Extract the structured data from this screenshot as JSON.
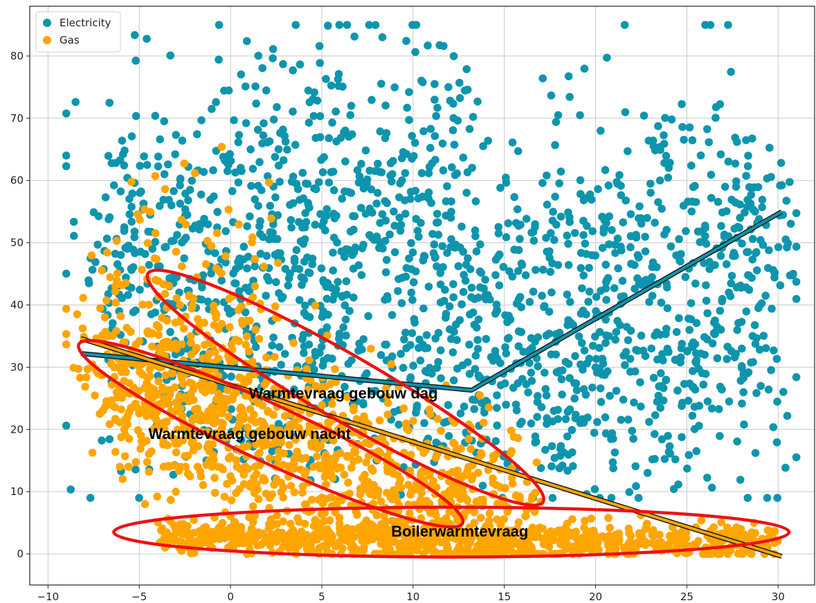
{
  "chart_data": {
    "type": "scatter",
    "title": "",
    "xlabel": "",
    "ylabel": "",
    "xlim": [
      -11,
      32
    ],
    "ylim": [
      -5,
      88
    ],
    "xticks": [
      -10,
      -5,
      0,
      5,
      10,
      15,
      20,
      25,
      30
    ],
    "yticks": [
      0,
      10,
      20,
      30,
      40,
      50,
      60,
      70,
      80
    ],
    "grid": true,
    "legend": {
      "position": "top-left",
      "entries": [
        "Electricity",
        "Gas"
      ]
    },
    "series": [
      {
        "name": "Electricity",
        "color": "#0e95ad",
        "distribution": {
          "x_range": [
            -9,
            31
          ],
          "y_range": [
            9,
            85
          ],
          "mode_x": [
            0,
            18
          ],
          "mode_y": [
            30,
            75
          ]
        }
      },
      {
        "name": "Gas",
        "color": "#ffa500",
        "distribution": {
          "x_range": [
            -9,
            31
          ],
          "y_range": [
            0,
            68
          ],
          "mode_x": [
            -2,
            15
          ],
          "mode_y": [
            0,
            40
          ]
        }
      }
    ],
    "fit_lines": [
      {
        "series": "Electricity",
        "color": "#0e95ad",
        "points": [
          [
            -8.2,
            32.2
          ],
          [
            13.2,
            26.3
          ],
          [
            30.2,
            55.0
          ]
        ]
      },
      {
        "series": "Gas",
        "color": "#ffa500",
        "points": [
          [
            -8.2,
            34.6
          ],
          [
            30.2,
            -0.4
          ]
        ]
      }
    ],
    "annotations": [
      {
        "text": "Warmtevraag gebouw dag",
        "x": 1,
        "y": 25,
        "ellipse": {
          "cx": 6.3,
          "cy": 26.7,
          "rx": 12.5,
          "ry": 5.2,
          "angle": 30
        }
      },
      {
        "text": "Warmtevraag gebouw nacht",
        "x": -4.5,
        "y": 18.5,
        "ellipse": {
          "cx": 2.2,
          "cy": 19.3,
          "rx": 11.6,
          "ry": 4.6,
          "angle": 25
        }
      },
      {
        "text": "Boilerwarmtevraag",
        "x": 8.8,
        "y": 2.8,
        "ellipse": {
          "cx": 12.1,
          "cy": 3.5,
          "rx": 18.5,
          "ry": 4.0,
          "angle": 0
        }
      }
    ]
  }
}
